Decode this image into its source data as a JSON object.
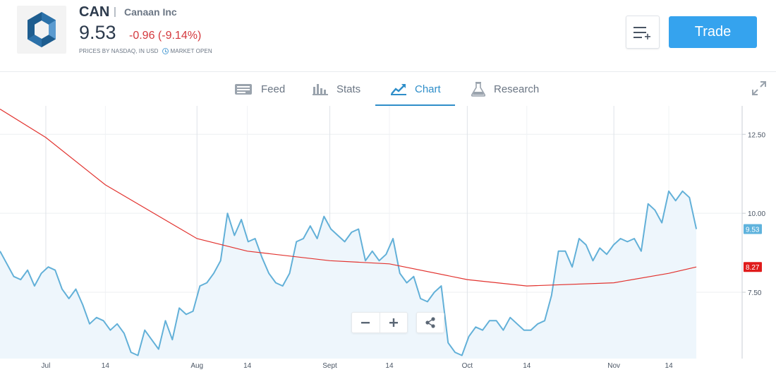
{
  "header": {
    "ticker": "CAN",
    "separator": "|",
    "company": "Canaan Inc",
    "price": "9.53",
    "change": "-0.96 (-9.14%)",
    "source_note": "PRICES BY NASDAQ, IN USD",
    "market_status": "MARKET OPEN",
    "trade_label": "Trade"
  },
  "tabs": [
    {
      "label": "Feed",
      "icon": "feed-icon"
    },
    {
      "label": "Stats",
      "icon": "stats-icon"
    },
    {
      "label": "Chart",
      "icon": "chart-icon",
      "active": true
    },
    {
      "label": "Research",
      "icon": "research-icon"
    }
  ],
  "colors": {
    "accent": "#35a3ee",
    "negative": "#d4383d",
    "price_line": "#62b0d8",
    "price_fill": "#eef6fc",
    "ma_line": "#e2332f"
  },
  "chart_data": {
    "type": "line",
    "x_range": [
      "2020-06-21",
      "2020-11-30"
    ],
    "ylim": [
      5.4,
      13.4
    ],
    "y_ticks": [
      12.5,
      10.0,
      7.5
    ],
    "y_tick_labels": [
      "12.50",
      "10.00",
      "7.50"
    ],
    "x_ticks": [
      {
        "label": "Jul",
        "date": "2020-07-01"
      },
      {
        "label": "14",
        "date": "2020-07-14"
      },
      {
        "label": "Aug",
        "date": "2020-08-03"
      },
      {
        "label": "14",
        "date": "2020-08-14"
      },
      {
        "label": "Sept",
        "date": "2020-09-01"
      },
      {
        "label": "14",
        "date": "2020-09-14"
      },
      {
        "label": "Oct",
        "date": "2020-10-01"
      },
      {
        "label": "14",
        "date": "2020-10-14"
      },
      {
        "label": "Nov",
        "date": "2020-11-02"
      },
      {
        "label": "14",
        "date": "2020-11-14"
      }
    ],
    "grid": true,
    "series": [
      {
        "type": "area",
        "points": [
          [
            "2020-06-21",
            8.8
          ],
          [
            "2020-06-22",
            8.4
          ],
          [
            "2020-06-23",
            8.0
          ],
          [
            "2020-06-24",
            7.9
          ],
          [
            "2020-06-25",
            8.2
          ],
          [
            "2020-06-26",
            7.7
          ],
          [
            "2020-06-27",
            8.1
          ],
          [
            "2020-06-28",
            8.3
          ],
          [
            "2020-06-29",
            8.2
          ],
          [
            "2020-06-30",
            7.6
          ],
          [
            "2020-07-01",
            7.3
          ],
          [
            "2020-07-02",
            7.6
          ],
          [
            "2020-07-03",
            7.1
          ],
          [
            "2020-07-04",
            6.5
          ],
          [
            "2020-07-05",
            6.7
          ],
          [
            "2020-07-06",
            6.6
          ],
          [
            "2020-07-07",
            6.3
          ],
          [
            "2020-07-08",
            6.5
          ],
          [
            "2020-07-09",
            6.2
          ],
          [
            "2020-07-10",
            5.6
          ],
          [
            "2020-07-11",
            5.5
          ],
          [
            "2020-07-12",
            6.3
          ],
          [
            "2020-07-13",
            6.0
          ],
          [
            "2020-07-14",
            5.7
          ],
          [
            "2020-07-15",
            6.6
          ],
          [
            "2020-07-16",
            6.0
          ],
          [
            "2020-07-17",
            7.0
          ],
          [
            "2020-07-18",
            6.8
          ],
          [
            "2020-07-19",
            6.9
          ],
          [
            "2020-07-20",
            7.7
          ],
          [
            "2020-07-21",
            7.8
          ],
          [
            "2020-07-22",
            8.1
          ],
          [
            "2020-07-23",
            8.5
          ],
          [
            "2020-07-24",
            10.0
          ],
          [
            "2020-07-25",
            9.3
          ],
          [
            "2020-07-26",
            9.8
          ],
          [
            "2020-07-27",
            9.1
          ],
          [
            "2020-07-28",
            9.2
          ],
          [
            "2020-07-29",
            8.6
          ],
          [
            "2020-07-30",
            8.1
          ],
          [
            "2020-07-31",
            7.8
          ],
          [
            "2020-08-01",
            7.7
          ],
          [
            "2020-08-02",
            8.1
          ],
          [
            "2020-08-03",
            9.1
          ],
          [
            "2020-08-04",
            9.2
          ],
          [
            "2020-08-05",
            9.6
          ],
          [
            "2020-08-06",
            9.2
          ],
          [
            "2020-08-07",
            9.9
          ],
          [
            "2020-08-08",
            9.5
          ],
          [
            "2020-08-09",
            9.3
          ],
          [
            "2020-08-10",
            9.1
          ],
          [
            "2020-08-11",
            9.4
          ],
          [
            "2020-08-12",
            9.5
          ],
          [
            "2020-08-13",
            8.5
          ],
          [
            "2020-08-14",
            8.8
          ],
          [
            "2020-08-15",
            8.5
          ],
          [
            "2020-08-16",
            8.7
          ],
          [
            "2020-08-17",
            9.2
          ],
          [
            "2020-08-18",
            8.1
          ],
          [
            "2020-08-19",
            7.8
          ],
          [
            "2020-08-20",
            8.0
          ],
          [
            "2020-08-21",
            7.3
          ],
          [
            "2020-08-22",
            7.2
          ],
          [
            "2020-08-23",
            7.5
          ],
          [
            "2020-08-24",
            7.7
          ],
          [
            "2020-08-25",
            5.9
          ],
          [
            "2020-08-26",
            5.6
          ],
          [
            "2020-08-27",
            5.5
          ],
          [
            "2020-08-28",
            6.1
          ],
          [
            "2020-08-29",
            6.4
          ],
          [
            "2020-08-30",
            6.3
          ],
          [
            "2020-08-31",
            6.6
          ],
          [
            "2020-09-01",
            6.6
          ],
          [
            "2020-09-02",
            6.3
          ],
          [
            "2020-09-03",
            6.7
          ],
          [
            "2020-09-04",
            6.5
          ],
          [
            "2020-09-05",
            6.3
          ],
          [
            "2020-09-06",
            6.3
          ],
          [
            "2020-09-07",
            6.5
          ],
          [
            "2020-09-08",
            6.6
          ],
          [
            "2020-09-09",
            7.4
          ],
          [
            "2020-09-10",
            8.8
          ],
          [
            "2020-09-11",
            8.8
          ],
          [
            "2020-09-12",
            8.3
          ],
          [
            "2020-09-13",
            9.2
          ],
          [
            "2020-09-14",
            9.0
          ],
          [
            "2020-09-15",
            8.5
          ],
          [
            "2020-09-16",
            8.9
          ],
          [
            "2020-09-17",
            8.7
          ],
          [
            "2020-09-18",
            9.0
          ],
          [
            "2020-09-19",
            9.2
          ],
          [
            "2020-09-20",
            9.1
          ],
          [
            "2020-09-21",
            9.2
          ],
          [
            "2020-09-22",
            8.8
          ],
          [
            "2020-09-23",
            10.3
          ],
          [
            "2020-09-24",
            10.1
          ],
          [
            "2020-09-25",
            9.7
          ],
          [
            "2020-09-26",
            10.7
          ],
          [
            "2020-09-27",
            10.4
          ],
          [
            "2020-09-28",
            10.7
          ],
          [
            "2020-09-29",
            10.5
          ],
          [
            "2020-09-30",
            9.5
          ]
        ]
      },
      {
        "type": "line",
        "points": [
          [
            "2020-06-21",
            13.3
          ],
          [
            "2020-07-01",
            12.4
          ],
          [
            "2020-07-14",
            10.9
          ],
          [
            "2020-08-03",
            9.2
          ],
          [
            "2020-08-14",
            8.8
          ],
          [
            "2020-09-01",
            8.5
          ],
          [
            "2020-09-14",
            8.4
          ],
          [
            "2020-10-01",
            7.9
          ],
          [
            "2020-10-14",
            7.7
          ],
          [
            "2020-11-02",
            7.8
          ],
          [
            "2020-11-14",
            8.1
          ],
          [
            "2020-11-20",
            8.3
          ]
        ]
      }
    ],
    "last_price_label": "9.53",
    "ma_value_label": "8.27"
  },
  "controls": {
    "zoom_out": "−",
    "zoom_in": "+"
  }
}
